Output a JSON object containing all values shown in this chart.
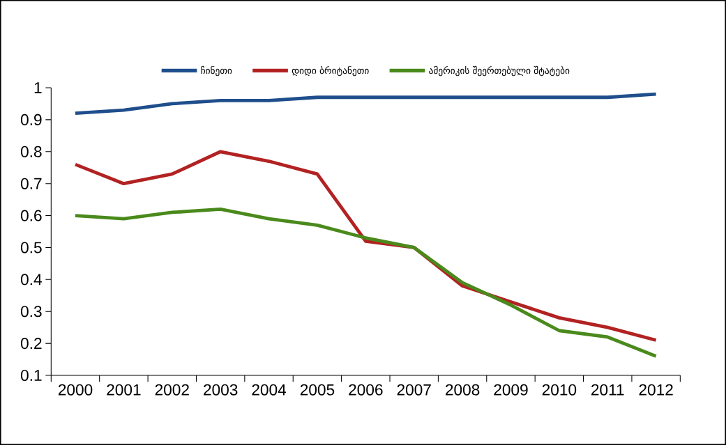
{
  "chart_data": {
    "type": "line",
    "categories": [
      "2000",
      "2001",
      "2002",
      "2003",
      "2004",
      "2005",
      "2006",
      "2007",
      "2008",
      "2009",
      "2010",
      "2011",
      "2012"
    ],
    "series": [
      {
        "name": "ჩინეთი",
        "color": "#1f4e8c",
        "values": [
          0.92,
          0.93,
          0.95,
          0.96,
          0.96,
          0.97,
          0.97,
          0.97,
          0.97,
          0.97,
          0.97,
          0.97,
          0.98
        ]
      },
      {
        "name": "დიდი ბრიტანეთი",
        "color": "#b22222",
        "values": [
          0.76,
          0.7,
          0.73,
          0.8,
          0.77,
          0.73,
          0.52,
          0.5,
          0.38,
          0.33,
          0.28,
          0.25,
          0.21
        ]
      },
      {
        "name": "ამერიკის შეერთებული შტატები",
        "color": "#4a8a1c",
        "values": [
          0.6,
          0.59,
          0.61,
          0.62,
          0.59,
          0.57,
          0.53,
          0.5,
          0.39,
          0.32,
          0.24,
          0.22,
          0.16
        ]
      }
    ],
    "ylim": [
      0.1,
      1
    ],
    "yticks": [
      0.1,
      0.2,
      0.3,
      0.4,
      0.5,
      0.6,
      0.7,
      0.8,
      0.9,
      1
    ],
    "grid": false,
    "legend": "top",
    "marker": "none",
    "line_style": "solid"
  }
}
